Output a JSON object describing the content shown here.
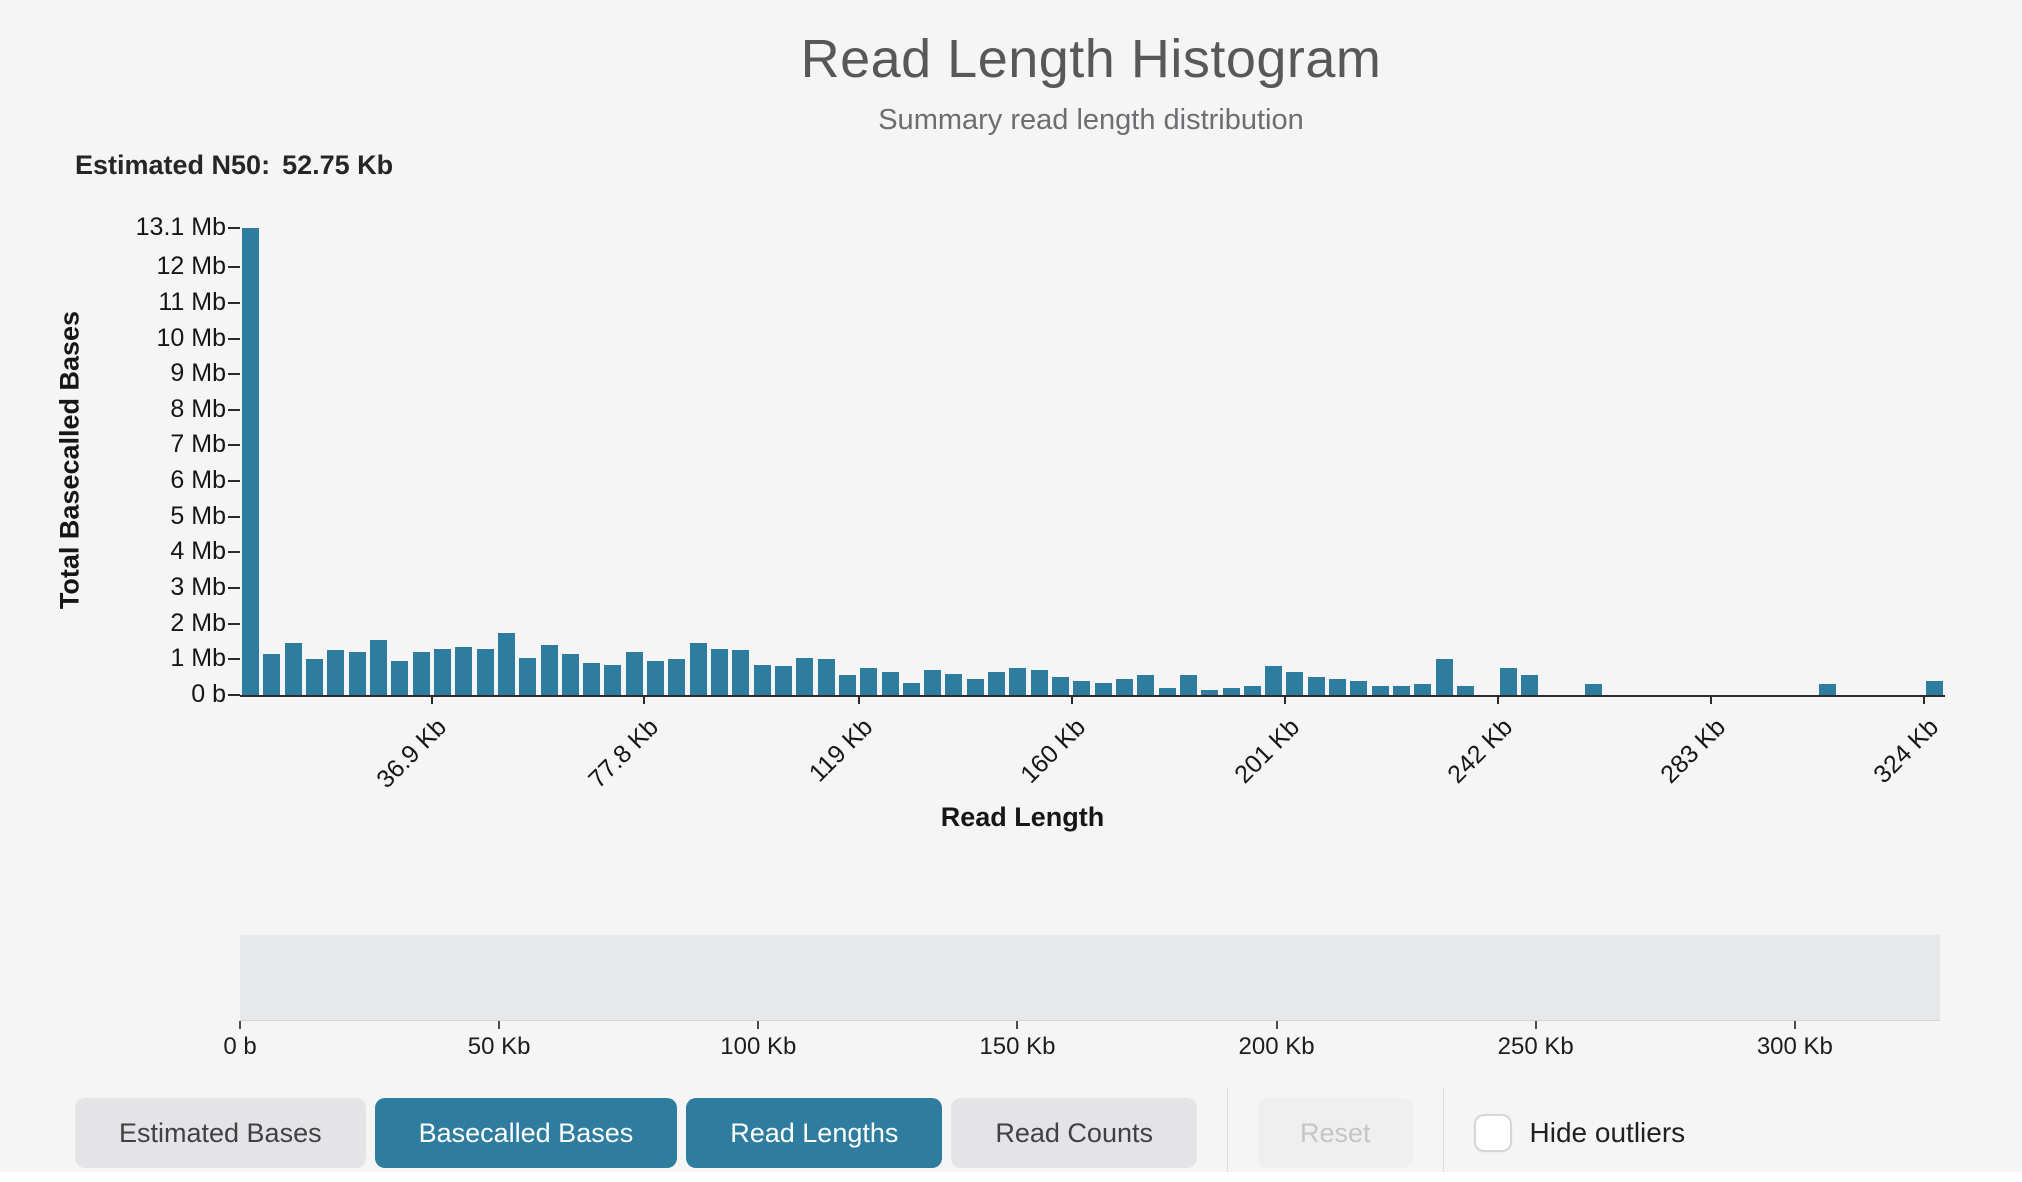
{
  "header": {
    "title": "Read Length Histogram",
    "subtitle": "Summary read length distribution"
  },
  "n50": {
    "label": "Estimated N50:",
    "value": "52.75 Kb"
  },
  "chart_data": {
    "type": "bar",
    "title": "Read Length Histogram",
    "subtitle": "Summary read length distribution",
    "xlabel": "Read Length",
    "ylabel": "Total Basecalled Bases",
    "bar_color": "#2E7D9E",
    "x_domain_kb": [
      0,
      328
    ],
    "bin_width_kb": 4.1,
    "ylim": [
      0,
      13.1
    ],
    "y_unit": "Mb",
    "grid": false,
    "legend": false,
    "y_ticks": [
      {
        "value": 13.1,
        "label": "13.1 Mb"
      },
      {
        "value": 12,
        "label": "12 Mb"
      },
      {
        "value": 11,
        "label": "11 Mb"
      },
      {
        "value": 10,
        "label": "10 Mb"
      },
      {
        "value": 9,
        "label": "9 Mb"
      },
      {
        "value": 8,
        "label": "8 Mb"
      },
      {
        "value": 7,
        "label": "7 Mb"
      },
      {
        "value": 6,
        "label": "6 Mb"
      },
      {
        "value": 5,
        "label": "5 Mb"
      },
      {
        "value": 4,
        "label": "4 Mb"
      },
      {
        "value": 3,
        "label": "3 Mb"
      },
      {
        "value": 2,
        "label": "2 Mb"
      },
      {
        "value": 1,
        "label": "1 Mb"
      },
      {
        "value": 0,
        "label": "0 b"
      }
    ],
    "x_ticks": [
      {
        "kb": 36.9,
        "label": "36.9 Kb"
      },
      {
        "kb": 77.8,
        "label": "77.8 Kb"
      },
      {
        "kb": 119,
        "label": "119 Kb"
      },
      {
        "kb": 160,
        "label": "160 Kb"
      },
      {
        "kb": 201,
        "label": "201 Kb"
      },
      {
        "kb": 242,
        "label": "242 Kb"
      },
      {
        "kb": 283,
        "label": "283 Kb"
      },
      {
        "kb": 324,
        "label": "324 Kb"
      }
    ],
    "values_mb": [
      13.1,
      1.15,
      1.45,
      1.0,
      1.25,
      1.2,
      1.55,
      0.95,
      1.2,
      1.3,
      1.35,
      1.3,
      1.75,
      1.05,
      1.4,
      1.15,
      0.9,
      0.85,
      1.2,
      0.95,
      1.0,
      1.45,
      1.3,
      1.25,
      0.85,
      0.8,
      1.05,
      1.0,
      0.55,
      0.75,
      0.65,
      0.35,
      0.7,
      0.6,
      0.45,
      0.65,
      0.75,
      0.7,
      0.5,
      0.4,
      0.35,
      0.45,
      0.55,
      0.2,
      0.55,
      0.15,
      0.2,
      0.25,
      0.8,
      0.65,
      0.5,
      0.45,
      0.4,
      0.25,
      0.25,
      0.3,
      1.0,
      0.25,
      0,
      0.75,
      0.55,
      0,
      0,
      0.3,
      0,
      0,
      0,
      0,
      0,
      0,
      0,
      0,
      0,
      0,
      0.3,
      0,
      0,
      0,
      0,
      0.4
    ]
  },
  "slider": {
    "x_ticks": [
      {
        "kb": 0,
        "label": "0 b"
      },
      {
        "kb": 50,
        "label": "50 Kb"
      },
      {
        "kb": 100,
        "label": "100 Kb"
      },
      {
        "kb": 150,
        "label": "150 Kb"
      },
      {
        "kb": 200,
        "label": "200 Kb"
      },
      {
        "kb": 250,
        "label": "250 Kb"
      },
      {
        "kb": 300,
        "label": "300 Kb"
      }
    ]
  },
  "controls": {
    "buttons": [
      {
        "label": "Estimated Bases",
        "active": false
      },
      {
        "label": "Basecalled Bases",
        "active": true
      },
      {
        "label": "Read Lengths",
        "active": true
      },
      {
        "label": "Read Counts",
        "active": false
      }
    ],
    "reset": {
      "label": "Reset",
      "enabled": false
    },
    "hide_outliers": {
      "label": "Hide outliers",
      "checked": false
    }
  },
  "colors": {
    "accent": "#2E7D9E",
    "button_inactive": "#e4e4e6",
    "background": "#f5f5f6"
  }
}
